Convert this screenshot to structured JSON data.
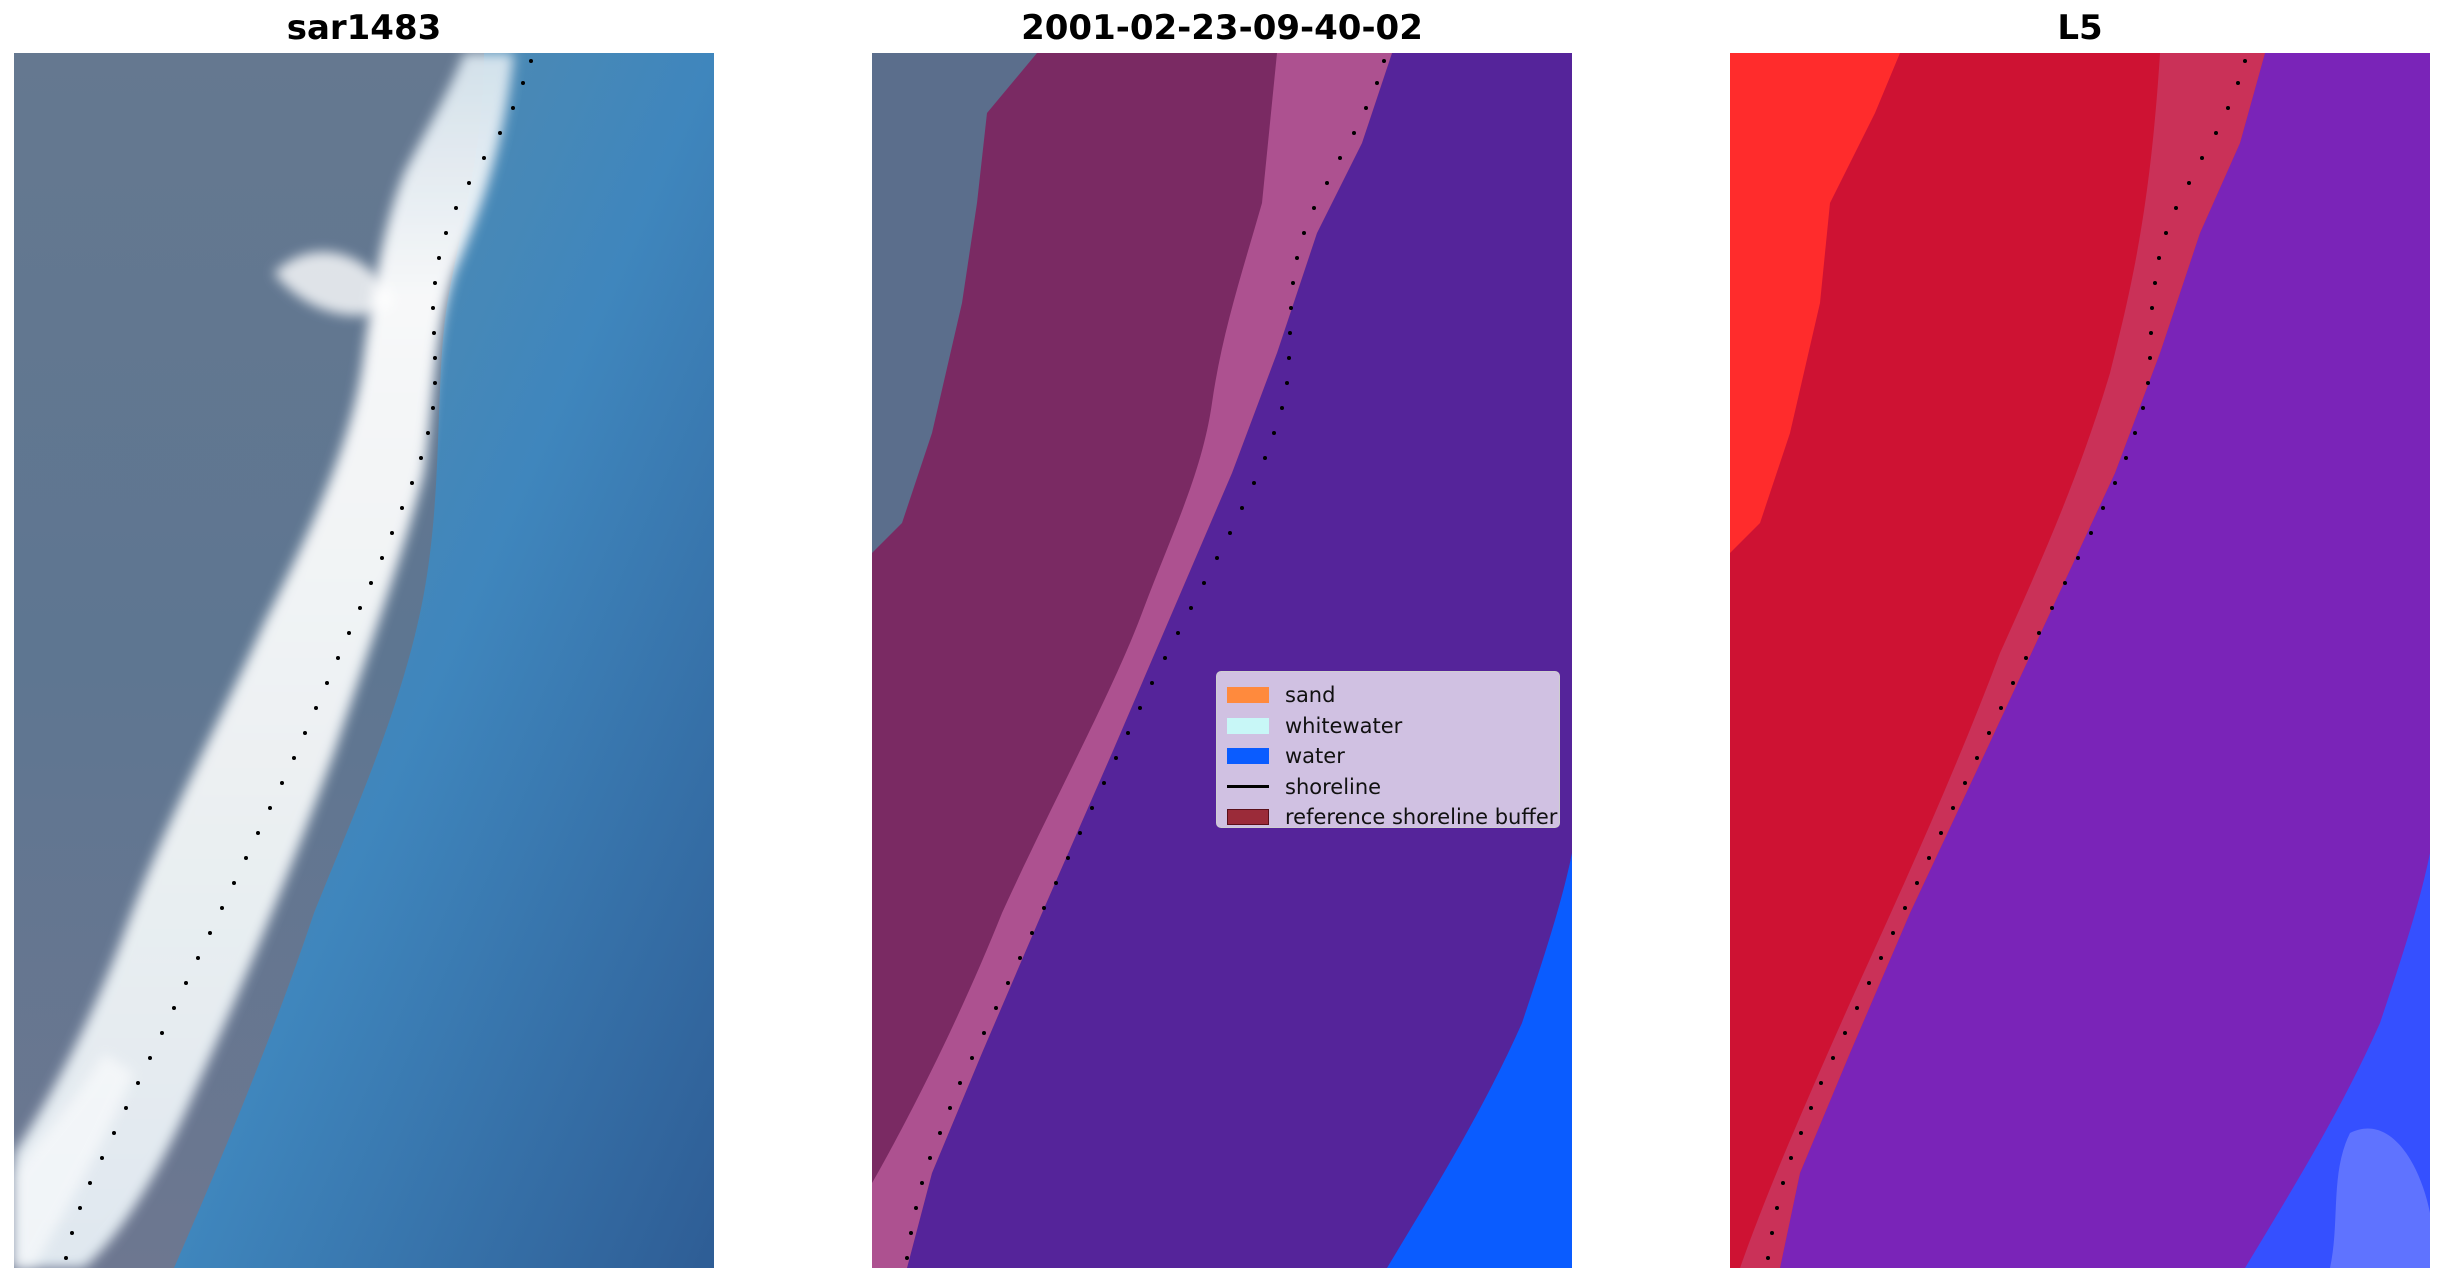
{
  "panels": [
    {
      "title": "sar1483",
      "kind": "rgb-image"
    },
    {
      "title": "2001-02-23-09-40-02",
      "kind": "classified-image"
    },
    {
      "title": "L5",
      "kind": "index-image"
    }
  ],
  "legend": {
    "items": [
      {
        "label": "sand",
        "color": "#ff8a3d"
      },
      {
        "label": "whitewater",
        "color": "#c8f7f7"
      },
      {
        "label": "water",
        "color": "#0a5cff"
      },
      {
        "label": "shoreline",
        "color": "#000000"
      },
      {
        "label": "reference shoreline buffer",
        "color": "#9b2b39"
      }
    ]
  },
  "colors": {
    "sand_like": "#6e6f8f",
    "surf": "#f3f7f8",
    "ocean": "#2f77b2",
    "buffer": "#7a2a63",
    "water_class": "#55249a",
    "water_deep": "#0a5cff",
    "index_red": "#ce1233",
    "index_purple": "#7a24b8",
    "index_blue": "#3550ff"
  }
}
